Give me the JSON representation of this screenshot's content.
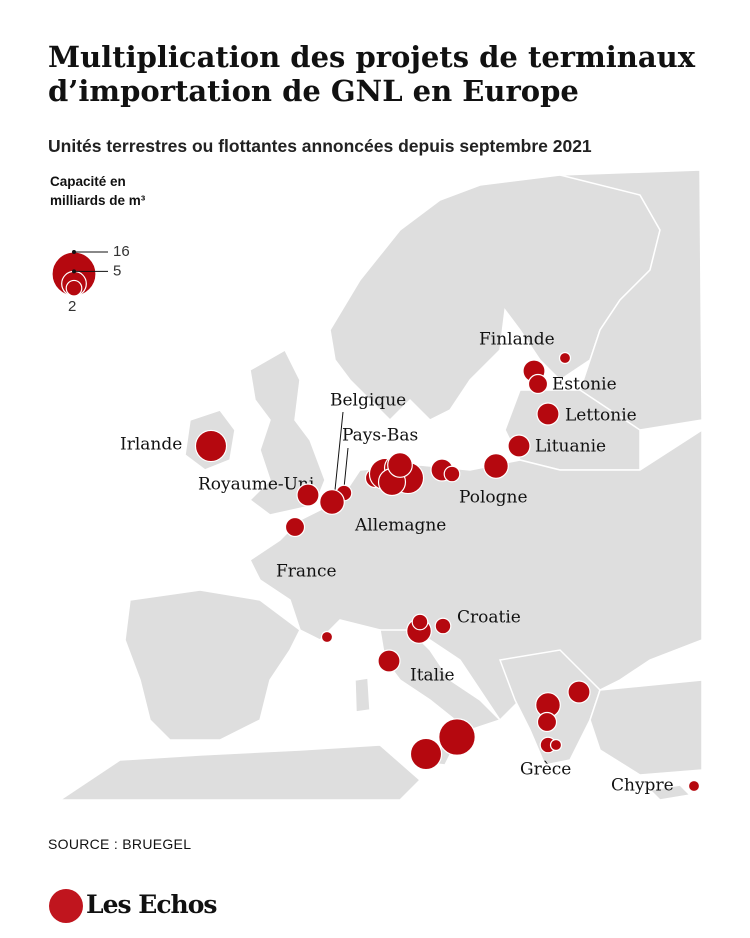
{
  "title": "Multiplication des projets de terminaux d’importation de GNL en Europe",
  "subtitle": "Unités terrestres ou flottantes annoncées depuis septembre 2021",
  "legend": {
    "title": "Capacité en milliards de m³",
    "sizes": [
      16,
      5,
      2
    ]
  },
  "countries": [
    "Finlande",
    "Estonie",
    "Lettonie",
    "Lituanie",
    "Pologne",
    "Allemagne",
    "Belgique",
    "Pays-Bas",
    "Irlande",
    "Royaume-Uni",
    "France",
    "Croatie",
    "Italie",
    "Grèce",
    "Chypre"
  ],
  "terminals": [
    {
      "capacity": 8
    },
    {
      "capacity": 4
    },
    {
      "capacity": 1
    },
    {
      "capacity": 3
    },
    {
      "capacity": 4
    },
    {
      "capacity": 4
    },
    {
      "capacity": 5
    },
    {
      "capacity": 4
    },
    {
      "capacity": 2
    },
    {
      "capacity": 3
    },
    {
      "capacity": 8
    },
    {
      "capacity": 6
    },
    {
      "capacity": 8
    },
    {
      "capacity": 6
    },
    {
      "capacity": 5
    },
    {
      "capacity": 2
    },
    {
      "capacity": 5
    },
    {
      "capacity": 4
    },
    {
      "capacity": 3
    },
    {
      "capacity": 1
    },
    {
      "capacity": 2
    },
    {
      "capacity": 5
    },
    {
      "capacity": 2
    },
    {
      "capacity": 4
    },
    {
      "capacity": 11
    },
    {
      "capacity": 8
    },
    {
      "capacity": 5
    },
    {
      "capacity": 3
    },
    {
      "capacity": 4
    },
    {
      "capacity": 2
    },
    {
      "capacity": 1
    },
    {
      "capacity": 1
    }
  ],
  "source": "SOURCE : BRUEGEL",
  "brand": "Les Echos"
}
